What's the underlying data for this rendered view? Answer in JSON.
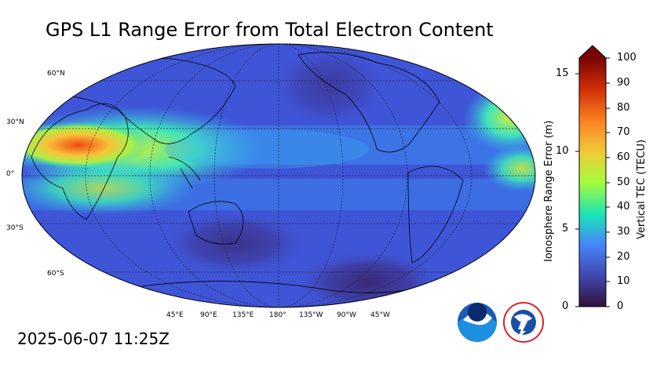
{
  "title": "GPS L1 Range Error from Total Electron Content",
  "timestamp": "2025-06-07 11:25Z",
  "map": {
    "lat_labels": [
      "60°N",
      "30°N",
      "0°",
      "30°S",
      "60°S"
    ],
    "lon_labels": [
      "45°E",
      "90°E",
      "135°E",
      "180°",
      "135°W",
      "90°W",
      "45°W"
    ]
  },
  "colorbar": {
    "left_axis_label": "Ionosphere Range Error (m)",
    "right_axis_label": "Vertical TEC (TECU)",
    "left_ticks": [
      "15",
      "10",
      "5",
      "0"
    ],
    "right_ticks": [
      "100",
      "90",
      "80",
      "70",
      "60",
      "50",
      "40",
      "30",
      "20",
      "10",
      "0"
    ],
    "range_error_range_m": [
      0,
      16.2
    ],
    "tec_range": [
      0,
      100
    ],
    "colors": [
      "#30123b",
      "#4146ac",
      "#4686fb",
      "#1ae4b6",
      "#a4fc3c",
      "#f1ca3a",
      "#fb8022",
      "#d23105",
      "#7a0403"
    ]
  },
  "logos": {
    "noaa_text": "NOAA",
    "nws_text": "NATIONAL WEATHER SERVICE"
  },
  "colors": {
    "land_outline": "#000000",
    "ocean_base": "#3f55d8",
    "hot_band": "#f04a10"
  }
}
